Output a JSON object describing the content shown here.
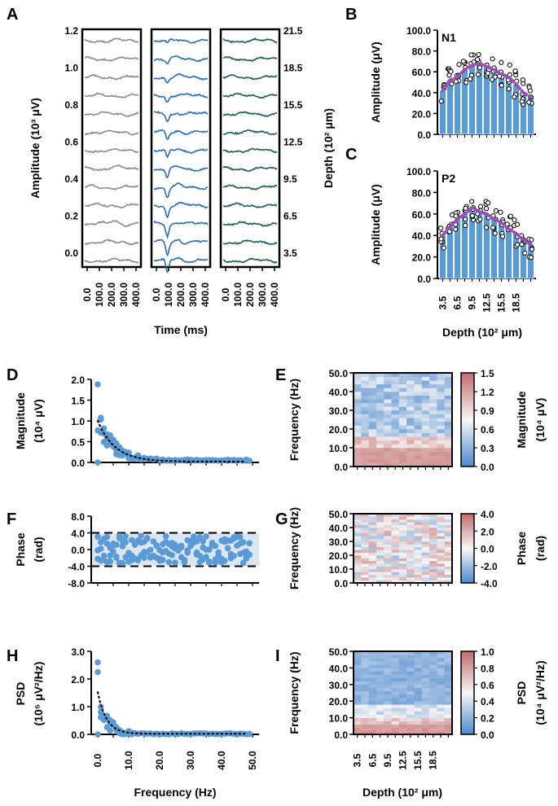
{
  "figure": {
    "panel_labels": [
      "A",
      "B",
      "C",
      "D",
      "E",
      "F",
      "G",
      "H",
      "I"
    ]
  },
  "chart_data": [
    {
      "id": "A",
      "type": "line",
      "ylabel": "Amplitude (10³ μV)",
      "xlabel": "Time (ms)",
      "yticks": [
        "0.0",
        "0.2",
        "0.4",
        "0.6",
        "0.8",
        "1.0",
        "1.2"
      ],
      "xticks": [
        "0.0",
        "100.0",
        "200.0",
        "300.0",
        "400.0"
      ],
      "right_label": "Depth (10² μm)",
      "right_ticks": [
        "3.5",
        "6.5",
        "9.5",
        "12.5",
        "15.5",
        "18.5",
        "21.5"
      ],
      "subpanels": 3,
      "traces_per_subpanel": 13,
      "trace_colors": [
        "#8c8c8c",
        "#2d6db5",
        "#1e5f5a"
      ],
      "trough_depth": [
        0.0,
        0.9,
        0.0
      ]
    },
    {
      "id": "B",
      "type": "bar",
      "title": "N1",
      "ylabel": "Amplitude (μV)",
      "yticks": [
        "0.0",
        "20.0",
        "40.0",
        "60.0",
        "80.0",
        "100.0"
      ],
      "ylim": [
        0,
        100
      ],
      "values": [
        42,
        52,
        55,
        62,
        66,
        68,
        65,
        62,
        58,
        55,
        48,
        40,
        36
      ],
      "trend_color": "#9b4fb5"
    },
    {
      "id": "C",
      "type": "bar",
      "title": "P2",
      "ylabel": "Amplitude (μV)",
      "xlabel": "Depth (10² μm)",
      "yticks": [
        "0.0",
        "20.0",
        "40.0",
        "60.0",
        "80.0",
        "100.0"
      ],
      "xticks": [
        "3.5",
        "6.5",
        "9.5",
        "12.5",
        "15.5",
        "18.5"
      ],
      "ylim": [
        0,
        100
      ],
      "values": [
        40,
        48,
        55,
        60,
        66,
        62,
        60,
        55,
        52,
        46,
        42,
        36,
        32
      ],
      "trend_color": "#9b4fb5"
    },
    {
      "id": "D",
      "type": "scatter",
      "ylabel": "Magnitude",
      "ylabel2": "(10⁴ μV)",
      "yticks": [
        "0.0",
        "0.5",
        "1.0",
        "1.5",
        "2.0"
      ],
      "ylim": [
        0,
        2
      ],
      "xlim": [
        0,
        50
      ]
    },
    {
      "id": "E",
      "type": "heatmap",
      "ylabel": "Frequency (Hz)",
      "yticks": [
        "0.0",
        "10.0",
        "20.0",
        "30.0",
        "40.0",
        "50.0"
      ],
      "cbar_ticks": [
        "0.0",
        "0.3",
        "0.6",
        "0.9",
        "1.2",
        "1.5"
      ],
      "cbar_label": "Magnitude",
      "cbar_label2": "(10⁴ μV)"
    },
    {
      "id": "F",
      "type": "scatter",
      "ylabel": "Phase",
      "ylabel2": "(rad)",
      "yticks": [
        "-8.0",
        "-4.0",
        "0.0",
        "4.0",
        "8.0"
      ],
      "ylim": [
        -8,
        8
      ],
      "xlim": [
        0,
        50
      ],
      "band": [
        -4,
        4
      ]
    },
    {
      "id": "G",
      "type": "heatmap",
      "ylabel": "Frequency (Hz)",
      "yticks": [
        "0.0",
        "10.0",
        "20.0",
        "30.0",
        "40.0",
        "50.0"
      ],
      "cbar_ticks": [
        "-4.0",
        "-2.0",
        "0.0",
        "2.0",
        "4.0"
      ],
      "cbar_label": "Phase",
      "cbar_label2": "(rad)"
    },
    {
      "id": "H",
      "type": "scatter",
      "ylabel": "PSD",
      "ylabel2": "(10⁵ μV²/Hz)",
      "yticks": [
        "0.0",
        "1.0",
        "2.0",
        "3.0"
      ],
      "xticks": [
        "0.0",
        "10.0",
        "20.0",
        "30.0",
        "40.0",
        "50.0"
      ],
      "xlabel": "Frequency (Hz)",
      "ylim": [
        0,
        3
      ],
      "xlim": [
        0,
        50
      ]
    },
    {
      "id": "I",
      "type": "heatmap",
      "ylabel": "Frequency (Hz)",
      "xlabel": "Depth (10² μm)",
      "yticks": [
        "0.0",
        "10.0",
        "20.0",
        "30.0",
        "40.0",
        "50.0"
      ],
      "xticks": [
        "3.5",
        "6.5",
        "9.5",
        "12.5",
        "15.5",
        "18.5"
      ],
      "cbar_ticks": [
        "0.0",
        "0.2",
        "0.4",
        "0.6",
        "0.8",
        "1.0"
      ],
      "cbar_label": "PSD",
      "cbar_label2": "(10⁴ μV²/Hz)"
    }
  ]
}
